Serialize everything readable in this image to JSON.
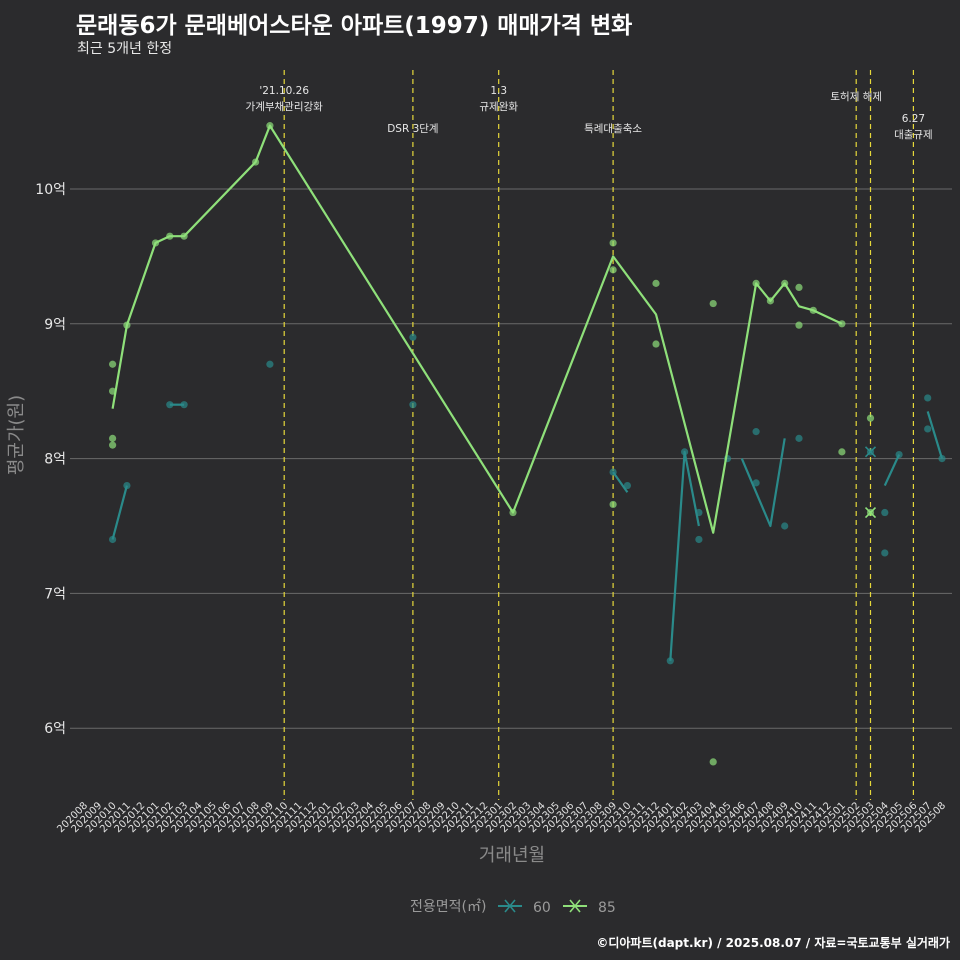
{
  "title": "문래동6가 문래베어스타운 아파트(1997) 매매가격 변화",
  "subtitle": "최근 5개년 한정",
  "caption": "©디아파트(dapt.kr) / 2025.08.07 / 자료=국토교통부 실거래가",
  "chart_data": {
    "type": "line",
    "xlabel": "거래년월",
    "ylabel": "평균가(원)",
    "y_unit_label": "억",
    "ylim": [
      5.5,
      11.0
    ],
    "yticks": [
      6,
      7,
      8,
      9,
      10
    ],
    "ytick_labels": [
      "6억",
      "7억",
      "8억",
      "9억",
      "10억"
    ],
    "grid": true,
    "legend_position": "bottom",
    "legend_title": "전용면적(㎡)",
    "x_categories": [
      "202008",
      "202009",
      "202010",
      "202011",
      "202012",
      "202101",
      "202102",
      "202103",
      "202104",
      "202105",
      "202106",
      "202107",
      "202108",
      "202109",
      "202110",
      "202111",
      "202112",
      "202201",
      "202202",
      "202203",
      "202204",
      "202205",
      "202206",
      "202207",
      "202208",
      "202209",
      "202210",
      "202211",
      "202212",
      "202301",
      "202302",
      "202303",
      "202304",
      "202305",
      "202306",
      "202307",
      "202308",
      "202309",
      "202310",
      "202311",
      "202312",
      "202401",
      "202402",
      "202403",
      "202404",
      "202405",
      "202406",
      "202407",
      "202408",
      "202409",
      "202410",
      "202411",
      "202412",
      "202501",
      "202502",
      "202503",
      "202504",
      "202505",
      "202506",
      "202507",
      "202508"
    ],
    "events": [
      {
        "x": "202110",
        "lines": [
          "'21.10.26",
          "가계부채관리강화"
        ],
        "level": 0
      },
      {
        "x": "202207",
        "lines": [
          "DSR 3단계"
        ],
        "level": 2
      },
      {
        "x": "202301",
        "lines": [
          "1.3",
          "규제완화"
        ],
        "level": 0
      },
      {
        "x": "202309",
        "lines": [
          "특례대출축소"
        ],
        "level": 2
      },
      {
        "x": "202502",
        "lines": [
          "토허제 해제"
        ],
        "level": 1
      },
      {
        "x": "202503",
        "lines": [],
        "level": 1
      },
      {
        "x": "202506",
        "lines": [
          "6.27",
          "대출규제"
        ],
        "level": 3
      }
    ],
    "series": [
      {
        "name": "60",
        "color": "#2a8a8a",
        "line": [
          {
            "x": "202010",
            "y": 7.4
          },
          {
            "x": "202011",
            "y": 7.8
          },
          null,
          {
            "x": "202102",
            "y": 8.4
          },
          {
            "x": "202103",
            "y": 8.4
          },
          null,
          {
            "x": "202309",
            "y": 7.9
          },
          {
            "x": "202310",
            "y": 7.75
          },
          null,
          {
            "x": "202401",
            "y": 6.5
          },
          {
            "x": "202402",
            "y": 8.05
          },
          {
            "x": "202403",
            "y": 7.5
          },
          null,
          {
            "x": "202406",
            "y": 8.0
          },
          {
            "x": "202408",
            "y": 7.5
          },
          {
            "x": "202409",
            "y": 8.15
          },
          null,
          {
            "x": "202504",
            "y": 7.8
          },
          {
            "x": "202505",
            "y": 8.03
          },
          null,
          {
            "x": "202507",
            "y": 8.35
          },
          {
            "x": "202508",
            "y": 8.0
          }
        ],
        "points": [
          {
            "x": "202010",
            "y": 7.4
          },
          {
            "x": "202011",
            "y": 7.8
          },
          {
            "x": "202102",
            "y": 8.4
          },
          {
            "x": "202103",
            "y": 8.4
          },
          {
            "x": "202109",
            "y": 8.7
          },
          {
            "x": "202207",
            "y": 8.9
          },
          {
            "x": "202207",
            "y": 8.4
          },
          {
            "x": "202309",
            "y": 7.9
          },
          {
            "x": "202310",
            "y": 7.8
          },
          {
            "x": "202401",
            "y": 6.5
          },
          {
            "x": "202402",
            "y": 8.05
          },
          {
            "x": "202403",
            "y": 7.6
          },
          {
            "x": "202403",
            "y": 7.4
          },
          {
            "x": "202405",
            "y": 8.0
          },
          {
            "x": "202407",
            "y": 8.2
          },
          {
            "x": "202407",
            "y": 7.82
          },
          {
            "x": "202409",
            "y": 7.5
          },
          {
            "x": "202410",
            "y": 8.15
          },
          {
            "x": "202503",
            "y": 8.05
          },
          {
            "x": "202504",
            "y": 7.3
          },
          {
            "x": "202504",
            "y": 7.6
          },
          {
            "x": "202505",
            "y": 8.03
          },
          {
            "x": "202507",
            "y": 8.45
          },
          {
            "x": "202507",
            "y": 8.22
          },
          {
            "x": "202508",
            "y": 8.0
          }
        ]
      },
      {
        "name": "85",
        "color": "#8fe07a",
        "line": [
          {
            "x": "202010",
            "y": 8.37
          },
          {
            "x": "202011",
            "y": 8.99
          },
          {
            "x": "202101",
            "y": 9.6
          },
          {
            "x": "202102",
            "y": 9.65
          },
          {
            "x": "202103",
            "y": 9.65
          },
          {
            "x": "202108",
            "y": 10.2
          },
          {
            "x": "202109",
            "y": 10.47
          },
          {
            "x": "202302",
            "y": 7.6
          },
          {
            "x": "202309",
            "y": 9.5
          },
          {
            "x": "202312",
            "y": 9.07
          },
          {
            "x": "202404",
            "y": 7.45
          },
          {
            "x": "202407",
            "y": 9.3
          },
          {
            "x": "202408",
            "y": 9.17
          },
          {
            "x": "202409",
            "y": 9.3
          },
          {
            "x": "202410",
            "y": 9.13
          },
          {
            "x": "202411",
            "y": 9.1
          },
          {
            "x": "202501",
            "y": 9.0
          }
        ],
        "points": [
          {
            "x": "202010",
            "y": 8.7
          },
          {
            "x": "202010",
            "y": 8.5
          },
          {
            "x": "202010",
            "y": 8.15
          },
          {
            "x": "202010",
            "y": 8.1
          },
          {
            "x": "202011",
            "y": 8.99
          },
          {
            "x": "202101",
            "y": 9.6
          },
          {
            "x": "202102",
            "y": 9.65
          },
          {
            "x": "202103",
            "y": 9.65
          },
          {
            "x": "202108",
            "y": 10.2
          },
          {
            "x": "202109",
            "y": 10.47
          },
          {
            "x": "202302",
            "y": 7.6
          },
          {
            "x": "202309",
            "y": 9.6
          },
          {
            "x": "202309",
            "y": 9.4
          },
          {
            "x": "202309",
            "y": 7.66
          },
          {
            "x": "202312",
            "y": 9.3
          },
          {
            "x": "202312",
            "y": 8.85
          },
          {
            "x": "202404",
            "y": 9.15
          },
          {
            "x": "202404",
            "y": 5.75
          },
          {
            "x": "202407",
            "y": 9.3
          },
          {
            "x": "202408",
            "y": 9.17
          },
          {
            "x": "202409",
            "y": 9.3
          },
          {
            "x": "202410",
            "y": 9.27
          },
          {
            "x": "202410",
            "y": 8.99
          },
          {
            "x": "202411",
            "y": 9.1
          },
          {
            "x": "202501",
            "y": 9.0
          },
          {
            "x": "202501",
            "y": 8.05
          },
          {
            "x": "202503",
            "y": 8.3
          },
          {
            "x": "202503",
            "y": 7.6
          }
        ]
      }
    ]
  }
}
